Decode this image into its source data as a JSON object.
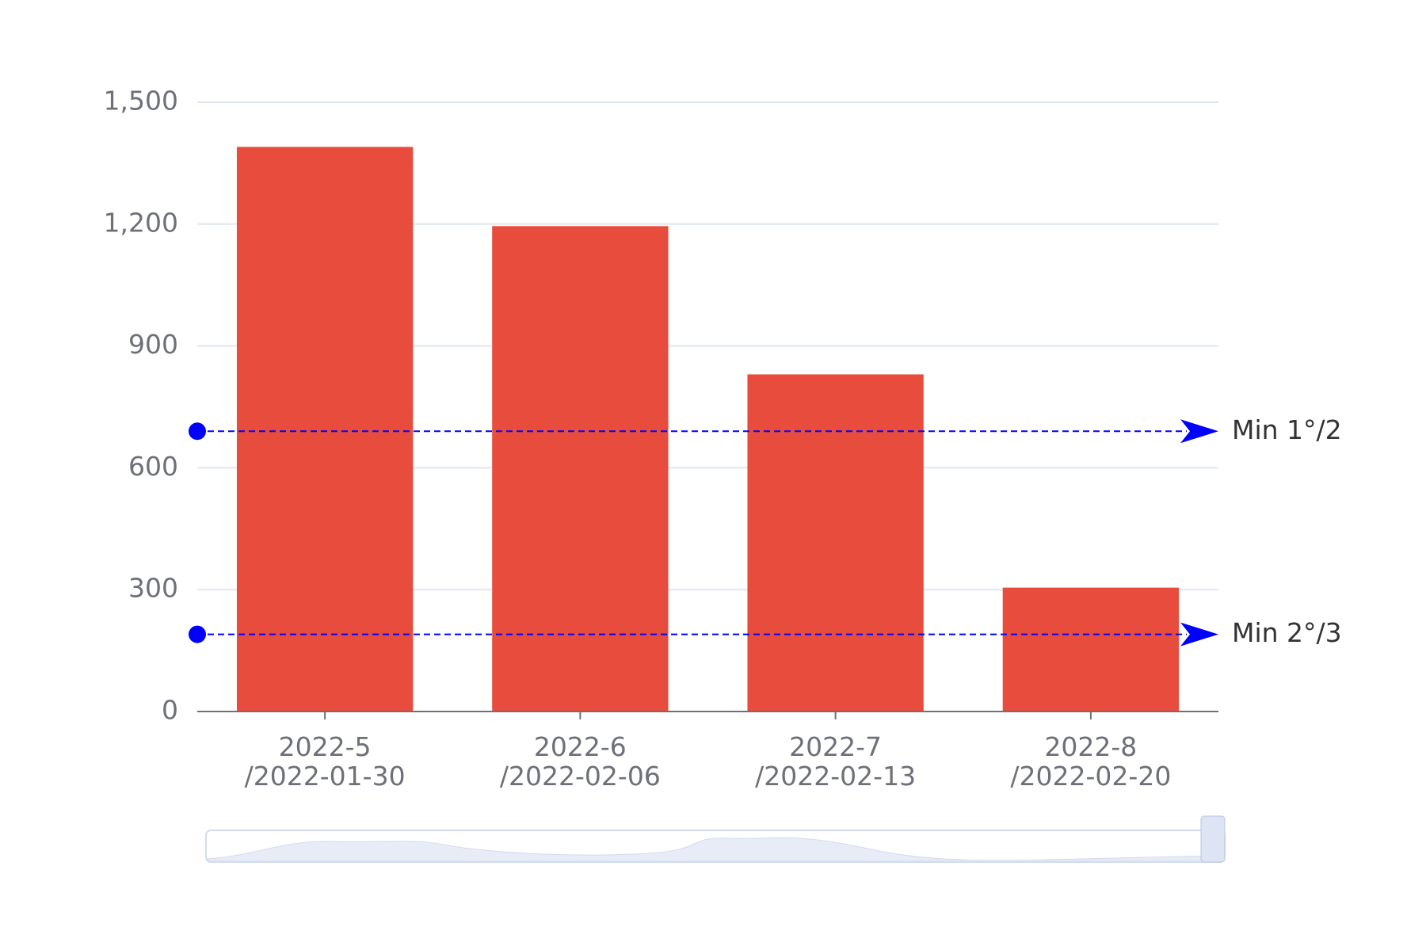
{
  "chart_data": {
    "type": "bar",
    "categories": [
      "2022-5\n/2022-01-30",
      "2022-6\n/2022-02-06",
      "2022-7\n/2022-02-13",
      "2022-8\n/2022-02-20"
    ],
    "values": [
      1390,
      1195,
      830,
      305
    ],
    "color": "#e74c3c",
    "ylim": [
      0,
      1500
    ],
    "yticks": [
      0,
      300,
      600,
      900,
      {
        "value": 1200,
        "label": "1,200"
      },
      {
        "value": 1500,
        "label": "1,500"
      }
    ],
    "grid": true,
    "mark_lines": [
      {
        "label": "Min 1°/2",
        "value": 690,
        "color": "#0000ff"
      },
      {
        "label": "Min 2°/3",
        "value": 190,
        "color": "#0000ff"
      }
    ]
  }
}
